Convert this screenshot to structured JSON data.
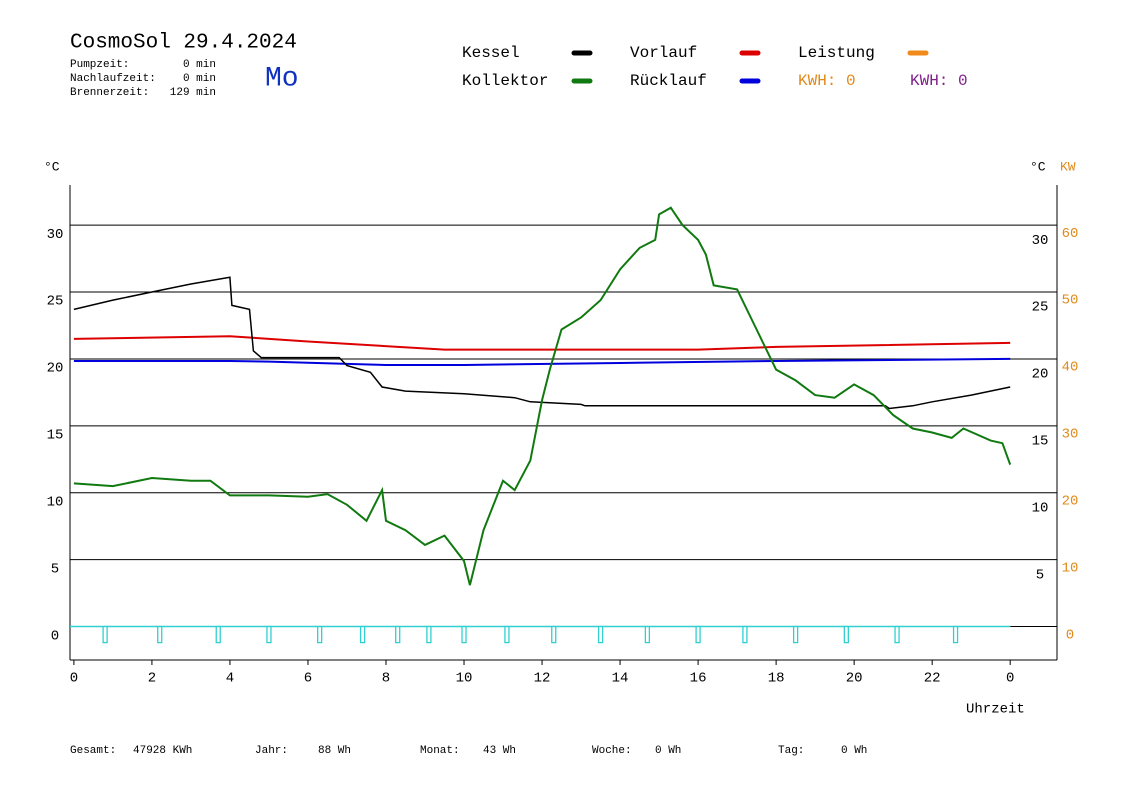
{
  "chart_data": {
    "type": "line",
    "title": "CosmoSol 29.4.2024",
    "weekday": "Mo",
    "info": [
      {
        "label": "Pumpzeit:",
        "value": "0 min"
      },
      {
        "label": "Nachlaufzeit:",
        "value": "0 min"
      },
      {
        "label": "Brennerzeit:",
        "value": "129 min"
      }
    ],
    "kwh": [
      {
        "text": "KWH: 0",
        "color": "#e08a1a"
      },
      {
        "text": "KWH: 0",
        "color": "#80208a"
      }
    ],
    "ylabel": "°C",
    "y2label_unit": "°C",
    "y2label": "KW",
    "xlabel": "Uhrzeit",
    "xlim": [
      -0.1,
      25.2
    ],
    "xticks": [
      0,
      2,
      4,
      6,
      8,
      10,
      12,
      14,
      16,
      18,
      20,
      22,
      {
        "value": 24,
        "label": "0"
      }
    ],
    "ylim": [
      -2.5,
      33
    ],
    "yticks": [
      0,
      5,
      10,
      15,
      20,
      25,
      30
    ],
    "y2lim": [
      -5,
      66
    ],
    "y2ticks": [
      0,
      10,
      20,
      30,
      40,
      50,
      60
    ],
    "grid": true,
    "series": [
      {
        "name": "Kessel",
        "color": "#000000",
        "x": [
          0,
          1,
          2,
          3,
          4.0,
          4.05,
          4.5,
          4.6,
          4.8,
          6.8,
          7.0,
          7.6,
          7.9,
          8.5,
          10,
          11.3,
          11.7,
          13,
          13.1,
          20.8,
          20.9,
          21.5,
          22,
          23,
          24
        ],
        "values": [
          23.7,
          24.4,
          25.0,
          25.6,
          26.1,
          24.0,
          23.7,
          20.6,
          20.1,
          20.1,
          19.5,
          19.0,
          17.9,
          17.6,
          17.4,
          17.1,
          16.8,
          16.6,
          16.5,
          16.5,
          16.3,
          16.5,
          16.8,
          17.3,
          17.9
        ]
      },
      {
        "name": "Kollektor",
        "color": "#107a10",
        "x": [
          0,
          1,
          2,
          3,
          3.5,
          4,
          5,
          6,
          6.5,
          7,
          7.5,
          7.9,
          8,
          8.5,
          9,
          9.5,
          10,
          10.15,
          10.5,
          11,
          11.3,
          11.7,
          12,
          12.2,
          12.5,
          13,
          13.5,
          14,
          14.5,
          14.9,
          15.0,
          15.3,
          15.6,
          16.0,
          16.2,
          16.4,
          17,
          17.5,
          18,
          18.5,
          19,
          19.5,
          20,
          20.5,
          21,
          21.5,
          22,
          22.5,
          22.8,
          23.5,
          23.8,
          24
        ],
        "values": [
          10.7,
          10.5,
          11.1,
          10.9,
          10.9,
          9.8,
          9.8,
          9.7,
          9.9,
          9.1,
          7.9,
          10.2,
          7.9,
          7.2,
          6.1,
          6.8,
          4.9,
          3.1,
          7.2,
          10.9,
          10.2,
          12.4,
          16.9,
          19.2,
          22.2,
          23.1,
          24.4,
          26.7,
          28.3,
          28.9,
          30.8,
          31.3,
          30.0,
          28.9,
          27.8,
          25.5,
          25.2,
          22.2,
          19.2,
          18.4,
          17.3,
          17.1,
          18.1,
          17.3,
          15.8,
          14.8,
          14.5,
          14.1,
          14.8,
          13.9,
          13.7,
          12.1
        ]
      },
      {
        "name": "Vorlauf",
        "color": "#dd0000",
        "x": [
          0,
          4,
          6,
          9.5,
          12,
          16,
          18,
          24
        ],
        "values": [
          21.5,
          21.7,
          21.3,
          20.7,
          20.7,
          20.7,
          20.9,
          21.2
        ]
      },
      {
        "name": "Rücklauf",
        "color": "#0000dd",
        "x": [
          0,
          4,
          5,
          8,
          10,
          14,
          18,
          24
        ],
        "values": [
          19.85,
          19.85,
          19.8,
          19.55,
          19.55,
          19.7,
          19.85,
          20.0
        ]
      },
      {
        "name": "Leistung",
        "color": "#f08a1a",
        "x": [],
        "values": []
      },
      {
        "type": "pulse",
        "color": "#30d0d0",
        "x": [
          0.8,
          2.2,
          3.7,
          5.0,
          6.3,
          7.4,
          8.3,
          9.1,
          10.0,
          11.1,
          12.3,
          13.5,
          14.7,
          16.0,
          17.2,
          18.5,
          19.8,
          21.1,
          22.6
        ],
        "values": [
          -1.2,
          -1.2,
          -1.2,
          -1.2,
          -1.2,
          -1.2,
          -1.2,
          -1.2,
          -1.2,
          -1.2,
          -1.2,
          -1.2,
          -1.2,
          -1.2,
          -1.2,
          -1.2,
          -1.2,
          -1.2,
          -1.2
        ]
      }
    ],
    "footer": [
      {
        "label": "Gesamt:",
        "value": "47928 KWh"
      },
      {
        "label": "Jahr:",
        "value": "88 Wh"
      },
      {
        "label": "Monat:",
        "value": "43 Wh"
      },
      {
        "label": "Woche:",
        "value": "0 Wh"
      },
      {
        "label": "Tag:",
        "value": "0 Wh"
      }
    ]
  }
}
